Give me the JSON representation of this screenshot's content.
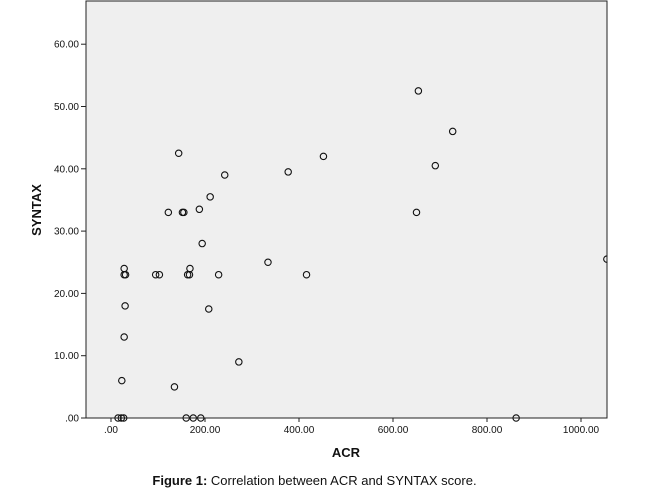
{
  "caption": {
    "label": "Figure 1:",
    "text": "Correlation between ACR and SYNTAX score."
  },
  "chart_data": {
    "type": "scatter",
    "title": "",
    "xlabel": "ACR",
    "ylabel": "SYNTAX",
    "xlim": [
      0,
      1055
    ],
    "ylim": [
      0,
      67
    ],
    "xticks": [
      0,
      200,
      400,
      600,
      800,
      1000
    ],
    "xtick_labels": [
      ".00",
      "200.00",
      "400.00",
      "600.00",
      "800.00",
      "1000.00"
    ],
    "yticks": [
      0,
      10,
      20,
      30,
      40,
      50,
      60
    ],
    "ytick_labels": [
      ".00",
      "10.00",
      "20.00",
      "30.00",
      "40.00",
      "50.00",
      "60.00"
    ],
    "grid": false,
    "plot_background": "#efefef",
    "marker": "open-circle",
    "points": [
      {
        "x": 15,
        "y": 0
      },
      {
        "x": 22,
        "y": 0
      },
      {
        "x": 27,
        "y": 0
      },
      {
        "x": 23,
        "y": 6
      },
      {
        "x": 28,
        "y": 13
      },
      {
        "x": 30,
        "y": 18
      },
      {
        "x": 28,
        "y": 23
      },
      {
        "x": 31,
        "y": 23
      },
      {
        "x": 28,
        "y": 24
      },
      {
        "x": 95,
        "y": 23
      },
      {
        "x": 103,
        "y": 23
      },
      {
        "x": 122,
        "y": 33
      },
      {
        "x": 135,
        "y": 5
      },
      {
        "x": 144,
        "y": 42.5
      },
      {
        "x": 152,
        "y": 33
      },
      {
        "x": 155,
        "y": 33
      },
      {
        "x": 160,
        "y": 0
      },
      {
        "x": 163,
        "y": 23
      },
      {
        "x": 167,
        "y": 23
      },
      {
        "x": 168,
        "y": 24
      },
      {
        "x": 175,
        "y": 0
      },
      {
        "x": 188,
        "y": 33.5
      },
      {
        "x": 191,
        "y": 0
      },
      {
        "x": 194,
        "y": 28
      },
      {
        "x": 208,
        "y": 17.5
      },
      {
        "x": 211,
        "y": 35.5
      },
      {
        "x": 229,
        "y": 23
      },
      {
        "x": 242,
        "y": 39
      },
      {
        "x": 272,
        "y": 9
      },
      {
        "x": 334,
        "y": 25
      },
      {
        "x": 377,
        "y": 39.5
      },
      {
        "x": 416,
        "y": 23
      },
      {
        "x": 452,
        "y": 42
      },
      {
        "x": 650,
        "y": 33
      },
      {
        "x": 654,
        "y": 52.5
      },
      {
        "x": 690,
        "y": 40.5
      },
      {
        "x": 727,
        "y": 46
      },
      {
        "x": 862,
        "y": 0
      },
      {
        "x": 1055,
        "y": 25.5
      }
    ]
  }
}
